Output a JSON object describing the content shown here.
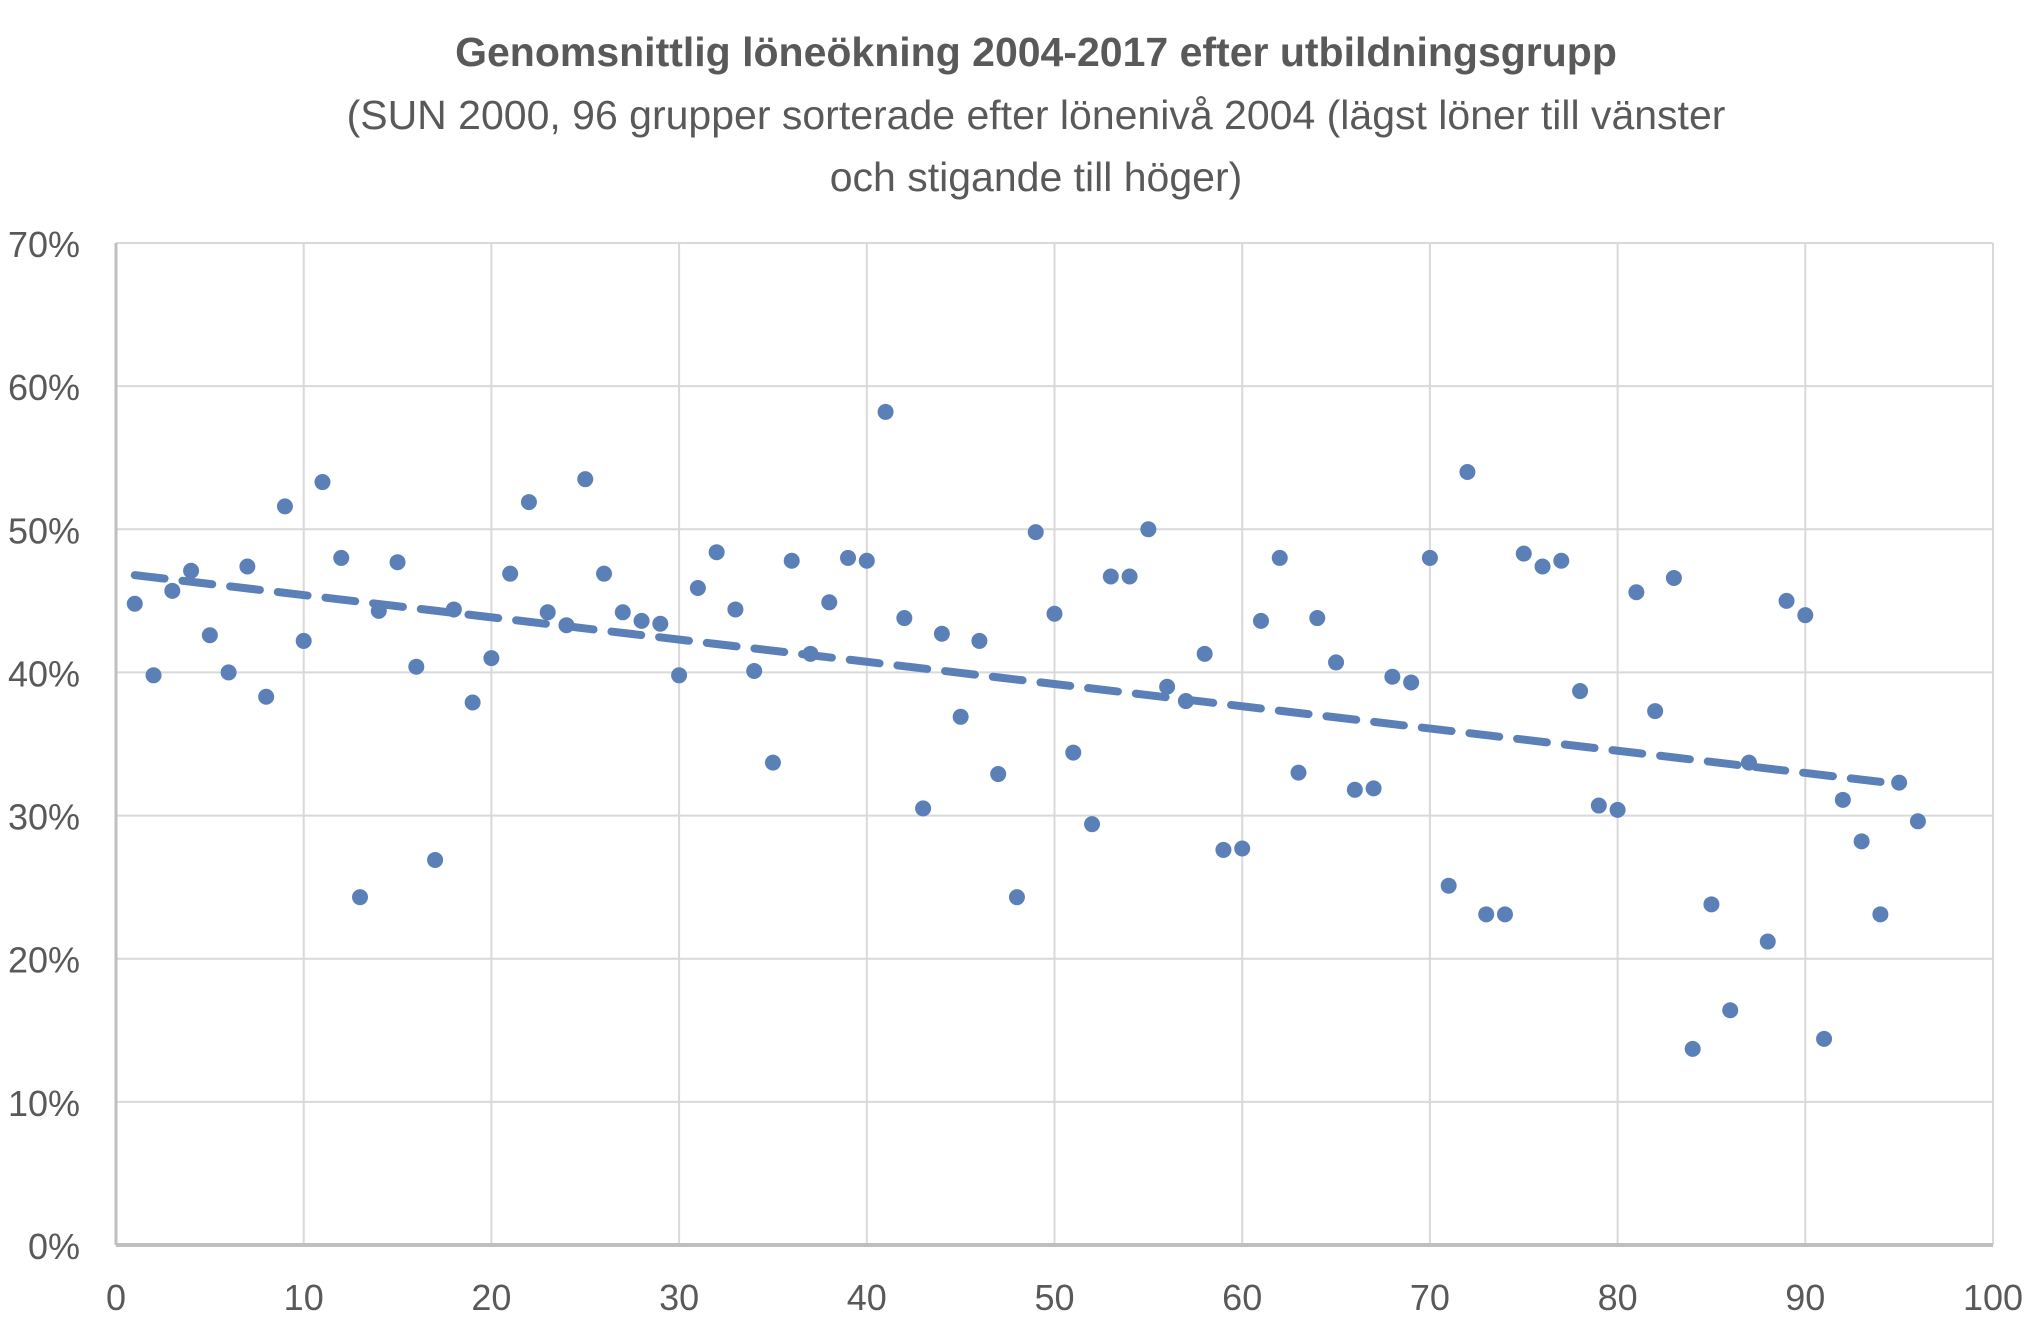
{
  "chart_data": {
    "type": "scatter",
    "title": "Genomsnittlig löneökning 2004-2017 efter utbildningsgrupp",
    "subtitle_lines": [
      "(SUN 2000, 96 grupper sorterade efter lönenivå 2004 (lägst löner till vänster",
      "och stigande till höger)"
    ],
    "xlabel": "",
    "ylabel": "",
    "xlim": [
      0,
      100
    ],
    "ylim": [
      0,
      70
    ],
    "x_ticks": [
      "0",
      "10",
      "20",
      "30",
      "40",
      "50",
      "60",
      "70",
      "80",
      "90",
      "100"
    ],
    "y_ticks": [
      "0%",
      "10%",
      "20%",
      "30%",
      "40%",
      "50%",
      "60%",
      "70%"
    ],
    "grid": true,
    "legend": "none",
    "marker_color": "#5b80b8",
    "trendline": {
      "type": "linear",
      "style": "dashed",
      "x": [
        1,
        95
      ],
      "y": [
        46.8,
        32.2
      ]
    },
    "series": [
      {
        "name": "Löneökning",
        "x": [
          1,
          2,
          3,
          4,
          5,
          6,
          7,
          8,
          9,
          10,
          11,
          12,
          13,
          14,
          15,
          16,
          17,
          18,
          19,
          20,
          21,
          22,
          23,
          24,
          25,
          26,
          27,
          28,
          29,
          30,
          31,
          32,
          33,
          34,
          35,
          36,
          37,
          38,
          39,
          40,
          41,
          42,
          43,
          44,
          45,
          46,
          47,
          48,
          49,
          50,
          51,
          52,
          53,
          54,
          55,
          56,
          57,
          58,
          59,
          60,
          61,
          62,
          63,
          64,
          65,
          66,
          67,
          68,
          69,
          70,
          71,
          72,
          73,
          74,
          75,
          76,
          77,
          78,
          79,
          80,
          81,
          82,
          83,
          84,
          85,
          86,
          87,
          88,
          89,
          90,
          91,
          92,
          93,
          94,
          95,
          96
        ],
        "y": [
          44.8,
          39.8,
          45.7,
          47.1,
          42.6,
          40.0,
          47.4,
          38.3,
          51.6,
          42.2,
          53.3,
          48.0,
          24.3,
          44.3,
          47.7,
          40.4,
          26.9,
          44.4,
          37.9,
          41.0,
          46.9,
          51.9,
          44.2,
          43.3,
          53.5,
          46.9,
          44.2,
          43.6,
          43.4,
          39.8,
          45.9,
          48.4,
          44.4,
          40.1,
          33.7,
          47.8,
          41.3,
          44.9,
          48.0,
          47.8,
          58.2,
          43.8,
          30.5,
          42.7,
          36.9,
          42.2,
          32.9,
          24.3,
          49.8,
          44.1,
          34.4,
          29.4,
          46.7,
          46.7,
          50.0,
          39.0,
          38.0,
          41.3,
          27.6,
          27.7,
          43.6,
          48.0,
          33.0,
          43.8,
          40.7,
          31.8,
          31.9,
          39.7,
          39.3,
          48.0,
          25.1,
          54.0,
          23.1,
          23.1,
          48.3,
          47.4,
          47.8,
          38.7,
          30.7,
          30.4,
          45.6,
          37.3,
          46.6,
          13.7,
          23.8,
          16.4,
          33.7,
          21.2,
          45.0,
          44.0,
          14.4,
          31.1,
          28.2,
          23.1,
          32.3,
          29.6
        ]
      }
    ]
  }
}
